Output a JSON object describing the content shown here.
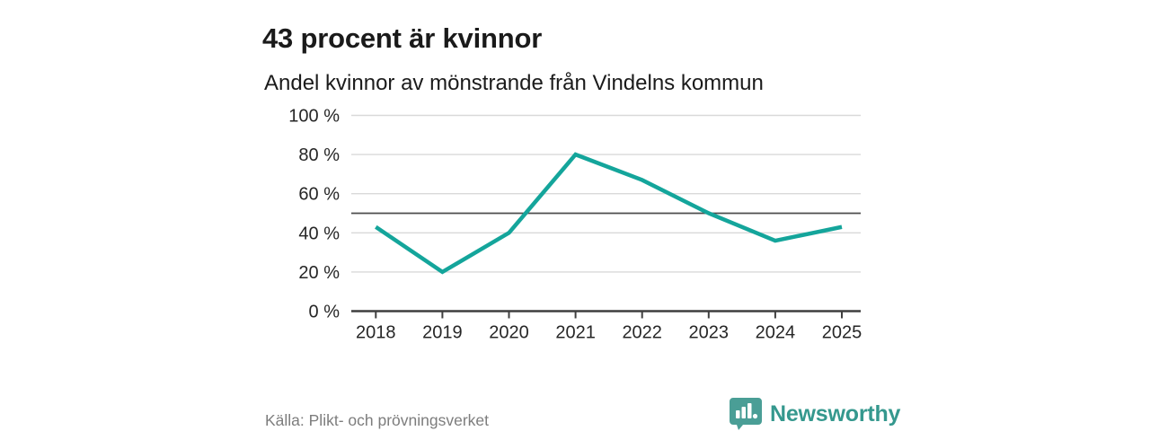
{
  "header": {
    "title": "43 procent är kvinnor",
    "subtitle": "Andel kvinnor av mönstrande från Vindelns kommun"
  },
  "chart_data": {
    "type": "line",
    "categories": [
      "2018",
      "2019",
      "2020",
      "2021",
      "2022",
      "2023",
      "2024",
      "2025"
    ],
    "series": [
      {
        "name": "Andel kvinnor av mönstrande",
        "values": [
          43,
          20,
          40,
          80,
          67,
          50,
          36,
          43
        ]
      }
    ],
    "title": "43 procent är kvinnor",
    "subtitle": "Andel kvinnor av mönstrande från Vindelns kommun",
    "xlabel": "",
    "ylabel": "",
    "ylim": [
      0,
      100
    ],
    "yticks": [
      0,
      20,
      40,
      60,
      80,
      100
    ],
    "ytick_labels": [
      "0 %",
      "20 %",
      "40 %",
      "60 %",
      "80 %",
      "100 %"
    ],
    "reference_line": 50,
    "grid": true,
    "legend": "none",
    "line_color": "#14a59b"
  },
  "footer": {
    "source": "Källa: Plikt- och prövningsverket",
    "brand": "Newsworthy"
  },
  "colors": {
    "line": "#14a59b",
    "gridline": "#d9d9d9",
    "axis": "#3f3f3f",
    "reference": "#4d4d4d",
    "tick_text": "#262626",
    "brand_teal": "#4a9e96",
    "brand_text": "#35988e",
    "source_gray": "#7d7d7d"
  }
}
